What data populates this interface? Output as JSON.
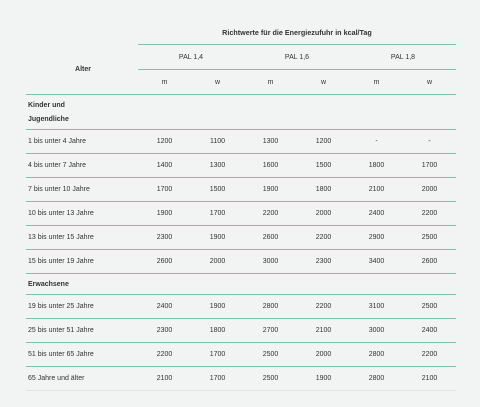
{
  "header": {
    "title": "Richtwerte für die Energiezufuhr in kcal/Tag",
    "age_label": "Alter",
    "pal_groups": [
      "PAL 1,4",
      "PAL 1,6",
      "PAL 1,8"
    ],
    "sex_labels": [
      "m",
      "w",
      "m",
      "w",
      "m",
      "w"
    ]
  },
  "sections": [
    {
      "label_line1": "Kinder und",
      "label_line2": "Jugendliche",
      "rows": [
        {
          "age": "1 bis unter 4 Jahre",
          "values": [
            "1200",
            "1100",
            "1300",
            "1200",
            "-",
            "-"
          ]
        },
        {
          "age": "4 bis unter 7 Jahre",
          "values": [
            "1400",
            "1300",
            "1600",
            "1500",
            "1800",
            "1700"
          ]
        },
        {
          "age": "7 bis unter 10 Jahre",
          "values": [
            "1700",
            "1500",
            "1900",
            "1800",
            "2100",
            "2000"
          ]
        },
        {
          "age": "10 bis unter 13 Jahre",
          "values": [
            "1900",
            "1700",
            "2200",
            "2000",
            "2400",
            "2200"
          ]
        },
        {
          "age": "13 bis unter 15 Jahre",
          "values": [
            "2300",
            "1900",
            "2600",
            "2200",
            "2900",
            "2500"
          ]
        },
        {
          "age": "15 bis unter 19 Jahre",
          "values": [
            "2600",
            "2000",
            "3000",
            "2300",
            "3400",
            "2600"
          ]
        }
      ]
    },
    {
      "label_line1": "Erwachsene",
      "label_line2": "",
      "rows": [
        {
          "age": "19 bis unter 25 Jahre",
          "values": [
            "2400",
            "1900",
            "2800",
            "2200",
            "3100",
            "2500"
          ]
        },
        {
          "age": "25 bis unter 51 Jahre",
          "values": [
            "2300",
            "1800",
            "2700",
            "2100",
            "3000",
            "2400"
          ]
        },
        {
          "age": "51 bis unter 65 Jahre",
          "values": [
            "2200",
            "1700",
            "2500",
            "2000",
            "2800",
            "2200"
          ]
        },
        {
          "age": "65 Jahre und älter",
          "values": [
            "2100",
            "1700",
            "2500",
            "1900",
            "2800",
            "2100"
          ]
        }
      ]
    }
  ],
  "colors": {
    "background": "#f2f3f3",
    "rule": "#7cc4a8",
    "text": "#333333"
  }
}
